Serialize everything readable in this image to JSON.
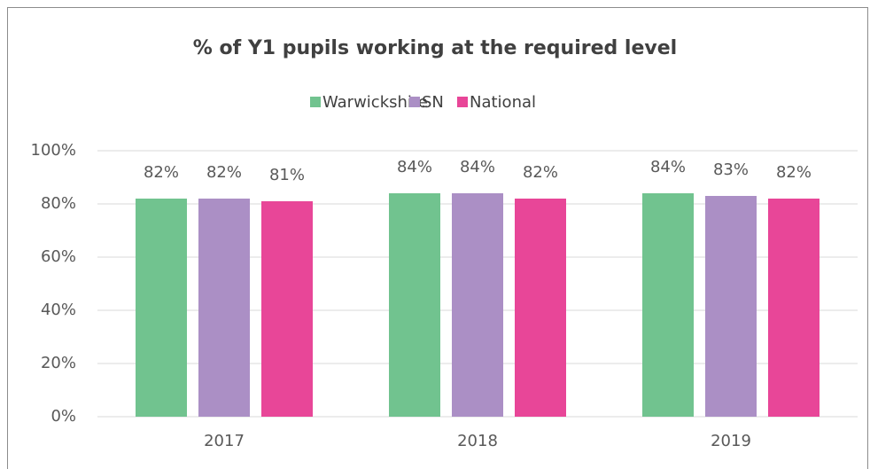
{
  "chart_data": {
    "type": "bar",
    "title": "% of Y1 pupils working at the required level",
    "categories": [
      "2017",
      "2018",
      "2019"
    ],
    "series": [
      {
        "name": "Warwickshire",
        "color": "#71c38f",
        "values": [
          82,
          84,
          84
        ],
        "value_labels": [
          "82%",
          "84%",
          "84%"
        ]
      },
      {
        "name": "SN",
        "color": "#ab8fc5",
        "values": [
          82,
          84,
          83
        ],
        "value_labels": [
          "82%",
          "84%",
          "83%"
        ]
      },
      {
        "name": "National",
        "color": "#e84698",
        "values": [
          81,
          82,
          82
        ],
        "value_labels": [
          "81%",
          "82%",
          "82%"
        ]
      }
    ],
    "ylim": [
      0,
      100
    ],
    "yticks": [
      {
        "value": 0,
        "label": "0%"
      },
      {
        "value": 20,
        "label": "20%"
      },
      {
        "value": 40,
        "label": "40%"
      },
      {
        "value": 60,
        "label": "60%"
      },
      {
        "value": 80,
        "label": "80%"
      },
      {
        "value": 100,
        "label": "100%"
      }
    ],
    "grid": true,
    "legend": "top"
  }
}
